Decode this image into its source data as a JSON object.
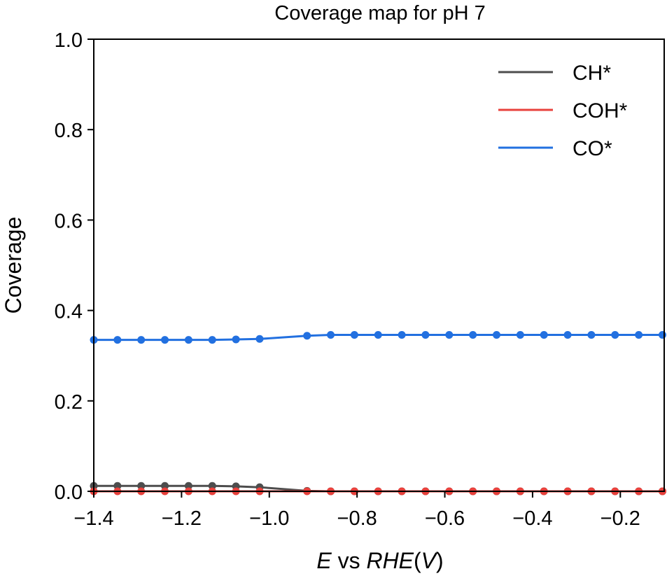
{
  "chart_data": {
    "type": "line",
    "title": "Coverage map for pH 7",
    "xlabel": {
      "italic1": "E",
      "normal": " vs ",
      "italic2": "RHE",
      "paren_open": "(",
      "italic3": "V",
      "paren_close": ")"
    },
    "ylabel": "Coverage",
    "xlim": [
      -1.4,
      -0.1
    ],
    "ylim": [
      0.0,
      1.0
    ],
    "xticks": [
      -1.4,
      -1.2,
      -1.0,
      -0.8,
      -0.6,
      -0.4,
      -0.2
    ],
    "xtick_labels": [
      "−1.4",
      "−1.2",
      "−1.0",
      "−0.8",
      "−0.6",
      "−0.4",
      "−0.2"
    ],
    "yticks": [
      0.0,
      0.2,
      0.4,
      0.6,
      0.8,
      1.0
    ],
    "ytick_labels": [
      "0.0",
      "0.2",
      "0.4",
      "0.6",
      "0.8",
      "1.0"
    ],
    "grid": false,
    "legend_position": "top-right",
    "x": [
      -1.4,
      -1.346,
      -1.292,
      -1.238,
      -1.184,
      -1.13,
      -1.076,
      -1.022,
      -0.914,
      -0.86,
      -0.806,
      -0.752,
      -0.698,
      -0.644,
      -0.59,
      -0.536,
      -0.482,
      -0.428,
      -0.374,
      -0.32,
      -0.266,
      -0.212,
      -0.158,
      -0.104
    ],
    "series": [
      {
        "name": "CH*",
        "color": "#4d4d4d",
        "values": [
          0.012,
          0.012,
          0.012,
          0.012,
          0.012,
          0.012,
          0.011,
          0.009,
          0.001,
          0.0,
          0.0,
          0.0,
          0.0,
          0.0,
          0.0,
          0.0,
          0.0,
          0.0,
          0.0,
          0.0,
          0.0,
          0.0,
          0.0,
          0.0
        ]
      },
      {
        "name": "COH*",
        "color": "#e8413c",
        "values": [
          0.0,
          0.0,
          0.0,
          0.0,
          0.0,
          0.0,
          0.0,
          0.0,
          0.0,
          0.0,
          0.0,
          0.0,
          0.0,
          0.0,
          0.0,
          0.0,
          0.0,
          0.0,
          0.0,
          0.0,
          0.0,
          0.0,
          0.0,
          0.0
        ]
      },
      {
        "name": "CO*",
        "color": "#2270e0",
        "values": [
          0.335,
          0.335,
          0.335,
          0.335,
          0.335,
          0.335,
          0.336,
          0.337,
          0.344,
          0.346,
          0.346,
          0.346,
          0.346,
          0.346,
          0.346,
          0.346,
          0.346,
          0.346,
          0.346,
          0.346,
          0.346,
          0.346,
          0.346,
          0.346
        ]
      }
    ]
  }
}
